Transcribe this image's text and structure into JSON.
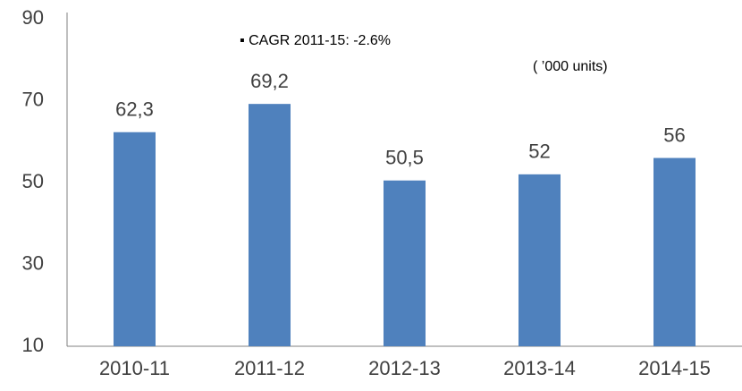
{
  "chart_data": {
    "type": "bar",
    "categories": [
      "2010-11",
      "2011-12",
      "2012-13",
      "2013-14",
      "2014-15"
    ],
    "values": [
      62.3,
      69.2,
      50.5,
      52,
      56
    ],
    "value_labels": [
      "62,3",
      "69,2",
      "50,5",
      "52",
      "56"
    ],
    "color": "#4f81bd",
    "ylim": [
      10,
      90
    ],
    "yticks": [
      10,
      30,
      50,
      70,
      90
    ],
    "grid": false,
    "annotations": [
      "▪ CAGR 2011-15: -2.6%",
      "( ’000 units)"
    ]
  }
}
